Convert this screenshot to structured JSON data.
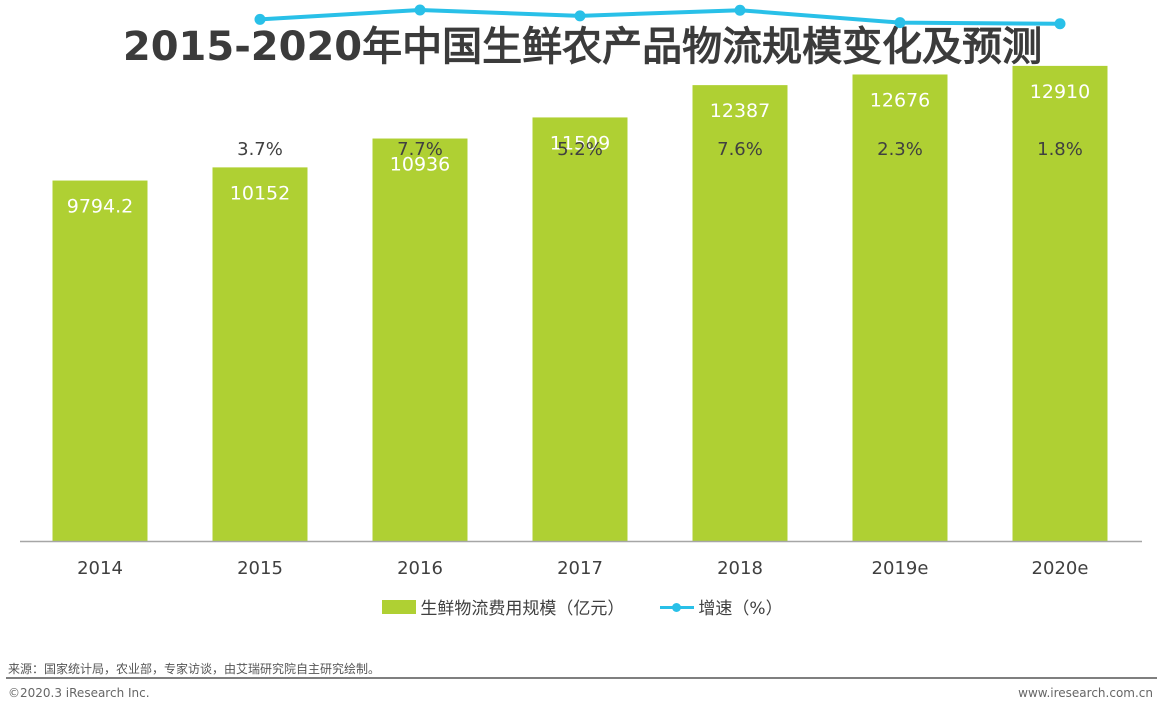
{
  "chart_data": {
    "type": "bar",
    "title": "2015-2020年中国生鲜农产品物流规模变化及预测",
    "categories": [
      "2014",
      "2015",
      "2016",
      "2017",
      "2018",
      "2019e",
      "2020e"
    ],
    "series": [
      {
        "name": "生鲜物流费用规模（亿元）",
        "type": "bar",
        "color": "#afd033",
        "values": [
          9794.2,
          10152,
          10936,
          11509,
          12387,
          12676,
          12910
        ],
        "labels": [
          "9794.2",
          "10152",
          "10936",
          "11509",
          "12387",
          "12676",
          "12910"
        ]
      },
      {
        "name": "增速（%）",
        "type": "line",
        "color": "#29c0e8",
        "values": [
          null,
          3.7,
          7.7,
          5.2,
          7.6,
          2.3,
          1.8
        ],
        "labels": [
          "",
          "3.7%",
          "7.7%",
          "5.2%",
          "7.6%",
          "2.3%",
          "1.8%"
        ]
      }
    ],
    "xlabel": "",
    "ylabel": "",
    "ylim": [
      0,
      14700
    ],
    "y2lim": [
      -220,
      12
    ],
    "grid": false,
    "legend": "bottom-center"
  },
  "footer": {
    "source": "来源：国家统计局，农业部，专家访谈，由艾瑞研究院自主研究绘制。",
    "copyright": "©2020.3 iResearch Inc.",
    "website": "www.iresearch.com.cn"
  }
}
